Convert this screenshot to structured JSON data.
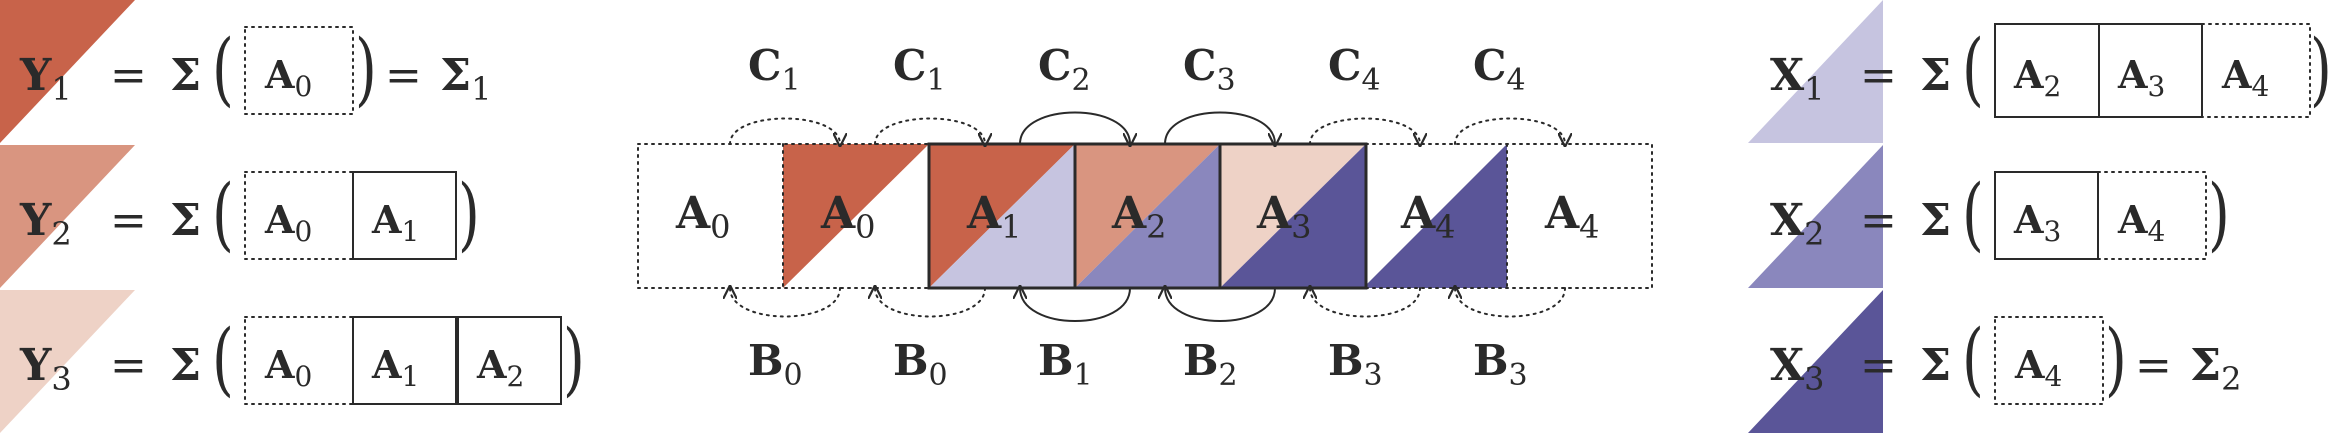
{
  "colors": {
    "red_dark": "#c8634a",
    "red_mid": "#d99580",
    "red_light": "#eed2c6",
    "blue_light": "#c6c4e0",
    "blue_mid": "#8a87bd",
    "blue_dark": "#5a5598",
    "stroke": "#2a2a2a"
  },
  "left_equations": [
    {
      "lhs_var": "Y",
      "lhs_sub": "1",
      "sigma": "Σ",
      "boxes": [
        {
          "var": "A",
          "sub": "0"
        }
      ],
      "rhs_var": "Σ",
      "rhs_sub": "1"
    },
    {
      "lhs_var": "Y",
      "lhs_sub": "2",
      "sigma": "Σ",
      "boxes": [
        {
          "var": "A",
          "sub": "0"
        },
        {
          "var": "A",
          "sub": "1"
        }
      ]
    },
    {
      "lhs_var": "Y",
      "lhs_sub": "3",
      "sigma": "Σ",
      "boxes": [
        {
          "var": "A",
          "sub": "0"
        },
        {
          "var": "A",
          "sub": "1"
        },
        {
          "var": "A",
          "sub": "2"
        }
      ]
    }
  ],
  "right_equations": [
    {
      "lhs_var": "X",
      "lhs_sub": "1",
      "sigma": "Σ",
      "boxes": [
        {
          "var": "A",
          "sub": "2"
        },
        {
          "var": "A",
          "sub": "3"
        },
        {
          "var": "A",
          "sub": "4"
        }
      ]
    },
    {
      "lhs_var": "X",
      "lhs_sub": "2",
      "sigma": "Σ",
      "boxes": [
        {
          "var": "A",
          "sub": "3"
        },
        {
          "var": "A",
          "sub": "4"
        }
      ]
    },
    {
      "lhs_var": "X",
      "lhs_sub": "3",
      "sigma": "Σ",
      "boxes": [
        {
          "var": "A",
          "sub": "4"
        }
      ],
      "rhs_var": "Σ",
      "rhs_sub": "2"
    }
  ],
  "center_cells": [
    {
      "var": "A",
      "sub": "0"
    },
    {
      "var": "A",
      "sub": "0"
    },
    {
      "var": "A",
      "sub": "1"
    },
    {
      "var": "A",
      "sub": "2"
    },
    {
      "var": "A",
      "sub": "3"
    },
    {
      "var": "A",
      "sub": "4"
    },
    {
      "var": "A",
      "sub": "4"
    }
  ],
  "top_labels": [
    {
      "var": "C",
      "sub": "1"
    },
    {
      "var": "C",
      "sub": "1"
    },
    {
      "var": "C",
      "sub": "2"
    },
    {
      "var": "C",
      "sub": "3"
    },
    {
      "var": "C",
      "sub": "4"
    },
    {
      "var": "C",
      "sub": "4"
    }
  ],
  "bottom_labels": [
    {
      "var": "B",
      "sub": "0"
    },
    {
      "var": "B",
      "sub": "0"
    },
    {
      "var": "B",
      "sub": "1"
    },
    {
      "var": "B",
      "sub": "2"
    },
    {
      "var": "B",
      "sub": "3"
    },
    {
      "var": "B",
      "sub": "3"
    }
  ]
}
